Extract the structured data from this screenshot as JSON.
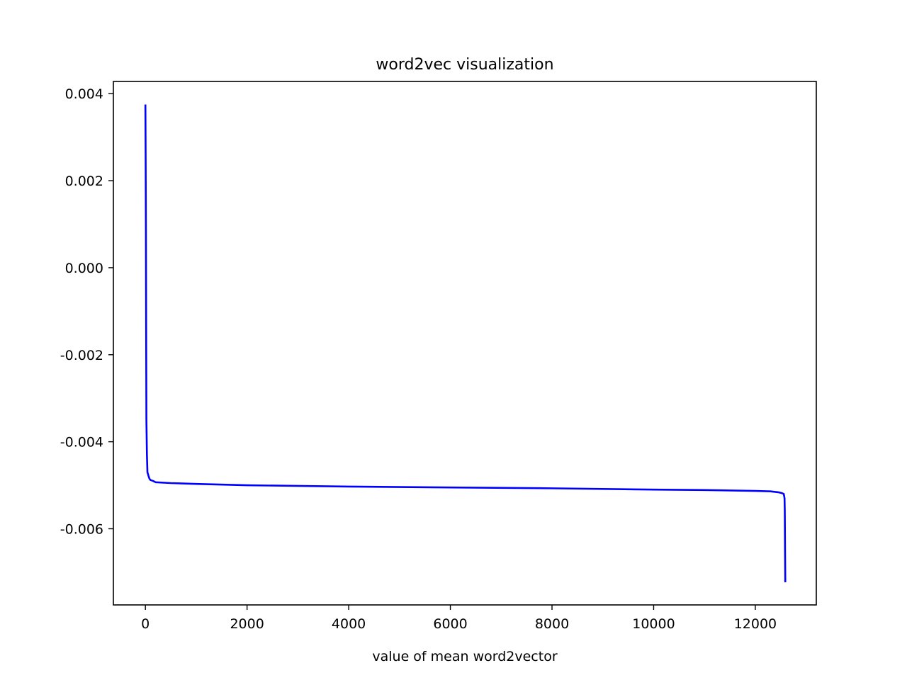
{
  "chart_data": {
    "type": "line",
    "title": "word2vec visualization",
    "xlabel": "value of mean word2vector",
    "ylabel": "",
    "xlim": [
      -630,
      13200
    ],
    "ylim": [
      -0.00775,
      0.00428
    ],
    "x_ticks": [
      0,
      2000,
      4000,
      6000,
      8000,
      10000,
      12000
    ],
    "y_ticks": [
      0.004,
      0.002,
      0.0,
      -0.002,
      -0.004,
      -0.006
    ],
    "x_tick_labels": [
      "0",
      "2000",
      "4000",
      "6000",
      "8000",
      "10000",
      "12000"
    ],
    "y_tick_labels": [
      "0.004",
      "0.002",
      "0.000",
      "-0.002",
      "-0.004",
      "-0.006"
    ],
    "grid": false,
    "legend": "none",
    "series": [
      {
        "color": "#0000ff",
        "x": [
          0,
          5,
          10,
          15,
          20,
          30,
          40,
          60,
          80,
          100,
          150,
          200,
          500,
          1000,
          2000,
          4000,
          6000,
          8000,
          10000,
          11000,
          12000,
          12300,
          12450,
          12520,
          12560,
          12575,
          12580,
          12585,
          12590
        ],
        "y": [
          0.00375,
          0.0025,
          0.0009,
          -0.0015,
          -0.0035,
          -0.0043,
          -0.0047,
          -0.00478,
          -0.00485,
          -0.00488,
          -0.0049,
          -0.00493,
          -0.00495,
          -0.00497,
          -0.005,
          -0.00503,
          -0.00505,
          -0.00507,
          -0.0051,
          -0.00511,
          -0.00513,
          -0.00514,
          -0.00516,
          -0.00518,
          -0.0052,
          -0.0053,
          -0.0056,
          -0.0065,
          -0.00723
        ]
      }
    ]
  }
}
